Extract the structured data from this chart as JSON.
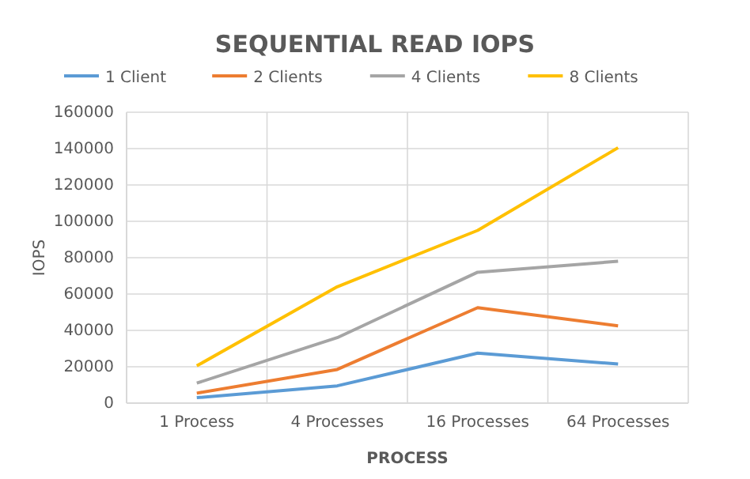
{
  "chart_data": {
    "type": "line",
    "title": "SEQUENTIAL READ IOPS",
    "xlabel": "PROCESS",
    "ylabel": "IOPS",
    "categories": [
      "1 Process",
      "4 Processes",
      "16 Processes",
      "64 Processes"
    ],
    "series": [
      {
        "name": "1 Client",
        "color": "#5b9bd5",
        "values": [
          3000,
          9500,
          27500,
          21500
        ]
      },
      {
        "name": "2 Clients",
        "color": "#ed7d31",
        "values": [
          5500,
          18500,
          52500,
          42500
        ]
      },
      {
        "name": "4 Clients",
        "color": "#a5a5a5",
        "values": [
          11000,
          36000,
          72000,
          78000
        ]
      },
      {
        "name": "8 Clients",
        "color": "#ffc000",
        "values": [
          20500,
          64000,
          95000,
          140500
        ]
      }
    ],
    "ylim": [
      0,
      160000
    ],
    "yticks": [
      0,
      20000,
      40000,
      60000,
      80000,
      100000,
      120000,
      140000,
      160000
    ],
    "grid": true,
    "legend": "top",
    "marker": "none",
    "line_style": "solid"
  }
}
